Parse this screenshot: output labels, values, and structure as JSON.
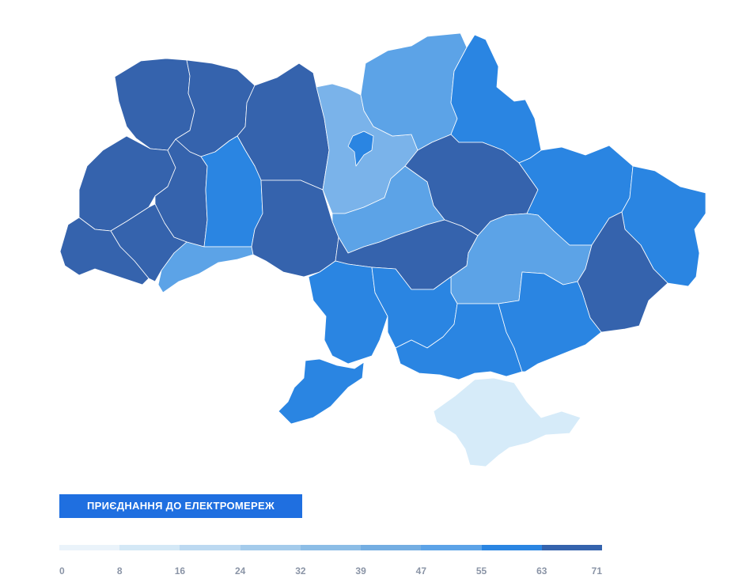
{
  "legend": {
    "title": "ПРИЄДНАННЯ ДО ЕЛЕКТРОМЕРЕЖ",
    "ticks": [
      "0",
      "8",
      "16",
      "24",
      "32",
      "39",
      "47",
      "55",
      "63",
      "71"
    ],
    "colors": [
      "#eaf3fa",
      "#d4e8f6",
      "#bcd9f1",
      "#a4cbeb",
      "#8cbde6",
      "#74aee2",
      "#5ca3e7",
      "#2a85e2",
      "#3563ad"
    ]
  },
  "palette": {
    "darkest": "#3563ad",
    "dark": "#2a85e2",
    "medium": "#5ca3e7",
    "light": "#7ab3ea",
    "lightest": "#d6ebf9",
    "title_bg": "#1f6fe0"
  },
  "regions": [
    {
      "id": "volyn",
      "level": "darkest"
    },
    {
      "id": "rivne",
      "level": "darkest"
    },
    {
      "id": "zhytomyr",
      "level": "darkest"
    },
    {
      "id": "lviv",
      "level": "darkest"
    },
    {
      "id": "ternopil",
      "level": "darkest"
    },
    {
      "id": "khmelnytskyi",
      "level": "dark"
    },
    {
      "id": "ivano-frankivsk",
      "level": "darkest"
    },
    {
      "id": "zakarpattia",
      "level": "darkest"
    },
    {
      "id": "chernivtsi",
      "level": "medium"
    },
    {
      "id": "vinnytsia",
      "level": "darkest"
    },
    {
      "id": "kyiv-oblast",
      "level": "light"
    },
    {
      "id": "kyiv-city",
      "level": "dark"
    },
    {
      "id": "chernihiv",
      "level": "medium"
    },
    {
      "id": "sumy",
      "level": "dark"
    },
    {
      "id": "poltava",
      "level": "darkest"
    },
    {
      "id": "kharkiv",
      "level": "dark"
    },
    {
      "id": "luhansk",
      "level": "dark"
    },
    {
      "id": "cherkasy",
      "level": "medium"
    },
    {
      "id": "kirovohrad",
      "level": "darkest"
    },
    {
      "id": "dnipropetrovsk",
      "level": "medium"
    },
    {
      "id": "donetsk",
      "level": "darkest"
    },
    {
      "id": "odesa-north",
      "level": "dark"
    },
    {
      "id": "mykolaiv",
      "level": "dark"
    },
    {
      "id": "kherson",
      "level": "dark"
    },
    {
      "id": "zaporizhzhia",
      "level": "dark"
    },
    {
      "id": "odesa-south",
      "level": "dark"
    },
    {
      "id": "crimea",
      "level": "lightest"
    }
  ]
}
